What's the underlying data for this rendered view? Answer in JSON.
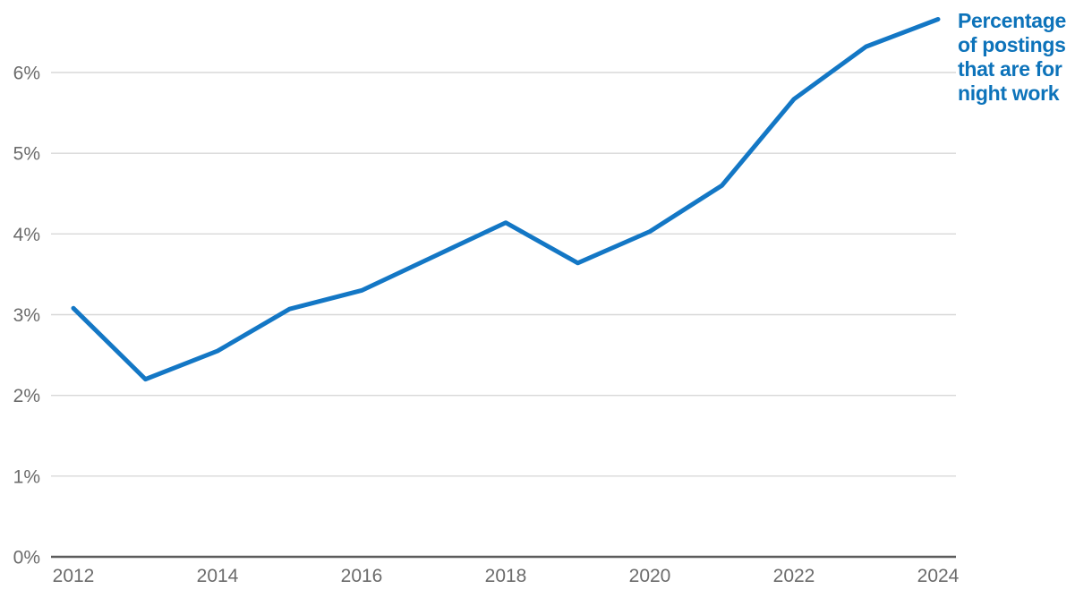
{
  "chart_data": {
    "type": "line",
    "title": "",
    "xlabel": "",
    "ylabel": "",
    "x": [
      2012,
      2013,
      2014,
      2015,
      2016,
      2017,
      2018,
      2019,
      2020,
      2021,
      2022,
      2023,
      2024
    ],
    "series": [
      {
        "name": "Percentage of postings that are for night work",
        "values": [
          3.08,
          2.2,
          2.55,
          3.07,
          3.3,
          3.72,
          4.14,
          3.64,
          4.03,
          4.6,
          5.67,
          6.32,
          6.66
        ]
      }
    ],
    "xticks": [
      2012,
      2014,
      2016,
      2018,
      2020,
      2022,
      2024
    ],
    "yticks": [
      0,
      1,
      2,
      3,
      4,
      5,
      6
    ],
    "ytick_labels": [
      "0%",
      "1%",
      "2%",
      "3%",
      "4%",
      "5%",
      "6%"
    ],
    "xlim": [
      2012,
      2024
    ],
    "ylim": [
      0,
      6.9
    ],
    "grid": true,
    "legend_position": "top-right",
    "annotation_text": "Percentage\nof postings\nthat are for\nnight work",
    "colors": {
      "line": "#1377c5",
      "annotation": "#0d73ba",
      "grid": "#d8d8d8",
      "axis": "#5c5c5c",
      "tick_text": "#6b6b6b",
      "background": "#ffffff"
    }
  }
}
